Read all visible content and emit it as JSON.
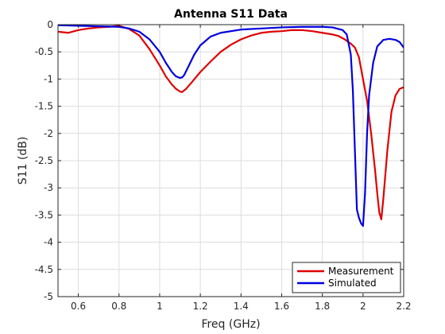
{
  "chart_data": {
    "type": "line",
    "title": "Antenna S11 Data",
    "xlabel": "Freq (GHz)",
    "ylabel": "S11 (dB)",
    "xlim": [
      0.5,
      2.2
    ],
    "ylim": [
      -5,
      0
    ],
    "xticks": [
      0.6,
      0.8,
      1,
      1.2,
      1.4,
      1.6,
      1.8,
      2,
      2.2
    ],
    "xtick_labels": [
      "0.6",
      "0.8",
      "1",
      "1.2",
      "1.4",
      "1.6",
      "1.8",
      "2",
      "2.2"
    ],
    "yticks": [
      0,
      -0.5,
      -1,
      -1.5,
      -2,
      -2.5,
      -3,
      -3.5,
      -4,
      -4.5,
      -5
    ],
    "ytick_labels": [
      "0",
      "-0.5",
      "-1",
      "-1.5",
      "-2",
      "-2.5",
      "-3",
      "-3.5",
      "-4",
      "-4.5",
      "-5"
    ],
    "grid": true,
    "legend_position": "bottom-right",
    "series": [
      {
        "name": "Measurement",
        "color": "#e00000",
        "x": [
          0.5,
          0.55,
          0.6,
          0.65,
          0.7,
          0.75,
          0.8,
          0.85,
          0.9,
          0.95,
          1.0,
          1.03,
          1.06,
          1.08,
          1.1,
          1.11,
          1.13,
          1.16,
          1.2,
          1.25,
          1.3,
          1.35,
          1.4,
          1.45,
          1.5,
          1.55,
          1.6,
          1.65,
          1.7,
          1.75,
          1.8,
          1.85,
          1.88,
          1.91,
          1.94,
          1.96,
          1.98,
          2.0,
          2.02,
          2.04,
          2.06,
          2.07,
          2.08,
          2.09,
          2.1,
          2.12,
          2.14,
          2.16,
          2.18,
          2.2
        ],
        "y": [
          -0.13,
          -0.15,
          -0.1,
          -0.07,
          -0.05,
          -0.04,
          -0.02,
          -0.08,
          -0.2,
          -0.45,
          -0.75,
          -0.95,
          -1.1,
          -1.18,
          -1.23,
          -1.24,
          -1.18,
          -1.05,
          -0.87,
          -0.68,
          -0.5,
          -0.37,
          -0.27,
          -0.2,
          -0.15,
          -0.13,
          -0.12,
          -0.1,
          -0.1,
          -0.12,
          -0.15,
          -0.18,
          -0.21,
          -0.27,
          -0.35,
          -0.42,
          -0.6,
          -1.0,
          -1.4,
          -2.0,
          -2.7,
          -3.1,
          -3.45,
          -3.58,
          -3.2,
          -2.3,
          -1.6,
          -1.3,
          -1.18,
          -1.15
        ]
      },
      {
        "name": "Simulated",
        "color": "#0000e0",
        "x": [
          0.5,
          0.6,
          0.7,
          0.8,
          0.85,
          0.9,
          0.95,
          1.0,
          1.03,
          1.06,
          1.08,
          1.1,
          1.11,
          1.12,
          1.14,
          1.17,
          1.2,
          1.25,
          1.3,
          1.4,
          1.5,
          1.6,
          1.7,
          1.8,
          1.85,
          1.9,
          1.92,
          1.94,
          1.95,
          1.96,
          1.97,
          1.98,
          1.99,
          2.0,
          2.01,
          2.02,
          2.03,
          2.05,
          2.07,
          2.1,
          2.13,
          2.16,
          2.18,
          2.2
        ],
        "y": [
          -0.01,
          -0.02,
          -0.03,
          -0.04,
          -0.07,
          -0.13,
          -0.27,
          -0.5,
          -0.7,
          -0.87,
          -0.95,
          -0.98,
          -0.97,
          -0.93,
          -0.78,
          -0.55,
          -0.38,
          -0.22,
          -0.15,
          -0.09,
          -0.07,
          -0.05,
          -0.04,
          -0.04,
          -0.05,
          -0.1,
          -0.18,
          -0.55,
          -1.2,
          -2.3,
          -3.4,
          -3.55,
          -3.65,
          -3.7,
          -3.1,
          -2.0,
          -1.3,
          -0.7,
          -0.4,
          -0.28,
          -0.26,
          -0.28,
          -0.32,
          -0.42
        ]
      }
    ]
  }
}
